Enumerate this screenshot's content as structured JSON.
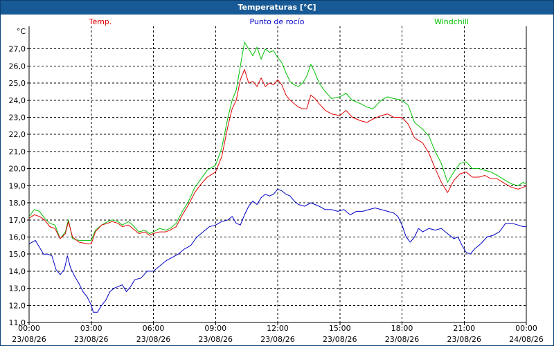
{
  "window": {
    "title": "Temperaturas [°C]"
  },
  "colors": {
    "titlebar": "#185a96",
    "temp": "#e00000",
    "dew": "#0000c8",
    "wind": "#00c000",
    "grid": "#000000"
  },
  "chart_data": {
    "type": "line",
    "title": "Temperaturas [°C]",
    "ylabel": "°C",
    "ylim": [
      11.0,
      28.0
    ],
    "grid": true,
    "y_ticks": [
      "11,0",
      "12,0",
      "13,0",
      "14,0",
      "15,0",
      "16,0",
      "17,0",
      "18,0",
      "19,0",
      "20,0",
      "21,0",
      "22,0",
      "23,0",
      "24,0",
      "25,0",
      "26,0",
      "27,0"
    ],
    "x_ticks": [
      {
        "time": "00:00",
        "date": "23/08/26"
      },
      {
        "time": "03:00",
        "date": "23/08/26"
      },
      {
        "time": "06:00",
        "date": "23/08/26"
      },
      {
        "time": "09:00",
        "date": "23/08/26"
      },
      {
        "time": "12:00",
        "date": "23/08/26"
      },
      {
        "time": "15:00",
        "date": "23/08/26"
      },
      {
        "time": "18:00",
        "date": "23/08/26"
      },
      {
        "time": "21:00",
        "date": "23/08/26"
      },
      {
        "time": "00:00",
        "date": "24/08/26"
      }
    ],
    "x_unit": "hours since 00:00 23/08/26",
    "xlim": [
      0,
      24
    ],
    "series": [
      {
        "name": "Temp.",
        "color": "#e00000",
        "points": [
          [
            0,
            17.1
          ],
          [
            0.25,
            17.3
          ],
          [
            0.5,
            17.2
          ],
          [
            0.75,
            17.0
          ],
          [
            1.0,
            16.6
          ],
          [
            1.25,
            16.5
          ],
          [
            1.5,
            15.9
          ],
          [
            1.75,
            16.2
          ],
          [
            1.9,
            16.9
          ],
          [
            2.1,
            16.0
          ],
          [
            2.4,
            15.7
          ],
          [
            2.8,
            15.6
          ],
          [
            3.0,
            15.6
          ],
          [
            3.2,
            16.3
          ],
          [
            3.5,
            16.7
          ],
          [
            3.8,
            16.8
          ],
          [
            4.0,
            16.9
          ],
          [
            4.3,
            16.8
          ],
          [
            4.5,
            16.6
          ],
          [
            4.8,
            16.7
          ],
          [
            5.0,
            16.5
          ],
          [
            5.3,
            16.2
          ],
          [
            5.6,
            16.3
          ],
          [
            5.8,
            16.1
          ],
          [
            6.0,
            16.2
          ],
          [
            6.3,
            16.3
          ],
          [
            6.6,
            16.3
          ],
          [
            6.8,
            16.4
          ],
          [
            7.1,
            16.6
          ],
          [
            7.4,
            17.3
          ],
          [
            7.7,
            17.9
          ],
          [
            8.0,
            18.6
          ],
          [
            8.3,
            19.1
          ],
          [
            8.6,
            19.5
          ],
          [
            9.0,
            19.8
          ],
          [
            9.3,
            20.7
          ],
          [
            9.6,
            22.5
          ],
          [
            9.8,
            23.5
          ],
          [
            10.0,
            24.0
          ],
          [
            10.2,
            25.2
          ],
          [
            10.4,
            25.8
          ],
          [
            10.6,
            25.0
          ],
          [
            10.8,
            25.1
          ],
          [
            11.0,
            24.8
          ],
          [
            11.2,
            25.3
          ],
          [
            11.4,
            24.8
          ],
          [
            11.6,
            25.0
          ],
          [
            11.8,
            24.9
          ],
          [
            12.0,
            25.2
          ],
          [
            12.2,
            24.9
          ],
          [
            12.4,
            24.3
          ],
          [
            12.6,
            24.0
          ],
          [
            12.8,
            23.8
          ],
          [
            13.0,
            23.6
          ],
          [
            13.2,
            23.5
          ],
          [
            13.4,
            23.5
          ],
          [
            13.6,
            24.3
          ],
          [
            13.8,
            24.1
          ],
          [
            14.0,
            23.8
          ],
          [
            14.3,
            23.4
          ],
          [
            14.6,
            23.2
          ],
          [
            15.0,
            23.1
          ],
          [
            15.3,
            23.4
          ],
          [
            15.6,
            23.0
          ],
          [
            16.0,
            22.8
          ],
          [
            16.3,
            22.7
          ],
          [
            16.6,
            22.9
          ],
          [
            17.0,
            23.1
          ],
          [
            17.3,
            23.2
          ],
          [
            17.6,
            23.0
          ],
          [
            18.0,
            23.0
          ],
          [
            18.3,
            22.6
          ],
          [
            18.6,
            21.8
          ],
          [
            19.0,
            21.5
          ],
          [
            19.3,
            20.9
          ],
          [
            19.6,
            20.0
          ],
          [
            19.9,
            19.2
          ],
          [
            20.2,
            18.6
          ],
          [
            20.5,
            19.3
          ],
          [
            20.8,
            19.7
          ],
          [
            21.1,
            19.8
          ],
          [
            21.4,
            19.5
          ],
          [
            21.7,
            19.5
          ],
          [
            22.0,
            19.6
          ],
          [
            22.3,
            19.4
          ],
          [
            22.6,
            19.4
          ],
          [
            23.0,
            19.1
          ],
          [
            23.3,
            18.9
          ],
          [
            23.6,
            18.8
          ],
          [
            23.85,
            18.9
          ],
          [
            24.0,
            19.0
          ]
        ]
      },
      {
        "name": "Punto de rocío",
        "color": "#0000c8",
        "points": [
          [
            0,
            15.6
          ],
          [
            0.3,
            15.8
          ],
          [
            0.5,
            15.4
          ],
          [
            0.7,
            15.0
          ],
          [
            0.9,
            15.0
          ],
          [
            1.1,
            14.9
          ],
          [
            1.3,
            14.1
          ],
          [
            1.5,
            13.8
          ],
          [
            1.7,
            14.1
          ],
          [
            1.85,
            14.9
          ],
          [
            2.0,
            14.2
          ],
          [
            2.2,
            13.7
          ],
          [
            2.4,
            13.3
          ],
          [
            2.6,
            12.8
          ],
          [
            2.8,
            12.5
          ],
          [
            3.0,
            12.0
          ],
          [
            3.1,
            11.6
          ],
          [
            3.3,
            11.6
          ],
          [
            3.5,
            12.0
          ],
          [
            3.7,
            12.3
          ],
          [
            3.9,
            12.8
          ],
          [
            4.1,
            13.0
          ],
          [
            4.3,
            13.1
          ],
          [
            4.5,
            13.2
          ],
          [
            4.7,
            12.8
          ],
          [
            4.9,
            13.1
          ],
          [
            5.1,
            13.5
          ],
          [
            5.4,
            13.6
          ],
          [
            5.7,
            14.0
          ],
          [
            6.0,
            14.0
          ],
          [
            6.3,
            14.3
          ],
          [
            6.6,
            14.6
          ],
          [
            6.9,
            14.8
          ],
          [
            7.2,
            15.0
          ],
          [
            7.5,
            15.3
          ],
          [
            7.8,
            15.5
          ],
          [
            8.1,
            16.0
          ],
          [
            8.4,
            16.3
          ],
          [
            8.7,
            16.6
          ],
          [
            9.0,
            16.7
          ],
          [
            9.3,
            16.9
          ],
          [
            9.6,
            17.0
          ],
          [
            9.8,
            17.2
          ],
          [
            10.0,
            16.8
          ],
          [
            10.2,
            16.7
          ],
          [
            10.4,
            17.3
          ],
          [
            10.6,
            17.8
          ],
          [
            10.8,
            18.1
          ],
          [
            11.0,
            17.9
          ],
          [
            11.2,
            18.3
          ],
          [
            11.4,
            18.5
          ],
          [
            11.6,
            18.4
          ],
          [
            11.8,
            18.5
          ],
          [
            12.0,
            18.8
          ],
          [
            12.2,
            18.7
          ],
          [
            12.4,
            18.5
          ],
          [
            12.6,
            18.4
          ],
          [
            12.8,
            18.1
          ],
          [
            13.0,
            17.9
          ],
          [
            13.3,
            17.8
          ],
          [
            13.6,
            18.0
          ],
          [
            13.8,
            17.9
          ],
          [
            14.0,
            17.8
          ],
          [
            14.3,
            17.6
          ],
          [
            14.6,
            17.6
          ],
          [
            14.9,
            17.5
          ],
          [
            15.2,
            17.6
          ],
          [
            15.5,
            17.3
          ],
          [
            15.8,
            17.5
          ],
          [
            16.1,
            17.5
          ],
          [
            16.4,
            17.6
          ],
          [
            16.7,
            17.7
          ],
          [
            17.0,
            17.6
          ],
          [
            17.3,
            17.5
          ],
          [
            17.6,
            17.4
          ],
          [
            17.8,
            17.2
          ],
          [
            18.0,
            16.7
          ],
          [
            18.2,
            16.0
          ],
          [
            18.4,
            15.7
          ],
          [
            18.6,
            16.0
          ],
          [
            18.8,
            16.5
          ],
          [
            19.0,
            16.3
          ],
          [
            19.3,
            16.5
          ],
          [
            19.6,
            16.4
          ],
          [
            19.9,
            16.5
          ],
          [
            20.1,
            16.3
          ],
          [
            20.3,
            16.1
          ],
          [
            20.5,
            15.9
          ],
          [
            20.7,
            16.0
          ],
          [
            20.9,
            15.5
          ],
          [
            21.1,
            15.1
          ],
          [
            21.3,
            15.0
          ],
          [
            21.5,
            15.3
          ],
          [
            21.8,
            15.6
          ],
          [
            22.1,
            16.0
          ],
          [
            22.4,
            16.1
          ],
          [
            22.7,
            16.3
          ],
          [
            23.0,
            16.8
          ],
          [
            23.3,
            16.8
          ],
          [
            23.6,
            16.7
          ],
          [
            23.85,
            16.6
          ],
          [
            24.0,
            16.6
          ]
        ]
      },
      {
        "name": "Windchill",
        "color": "#00c000",
        "points": [
          [
            0,
            17.2
          ],
          [
            0.25,
            17.6
          ],
          [
            0.5,
            17.5
          ],
          [
            0.75,
            17.1
          ],
          [
            1.0,
            16.8
          ],
          [
            1.25,
            16.7
          ],
          [
            1.5,
            15.9
          ],
          [
            1.75,
            16.3
          ],
          [
            1.9,
            17.0
          ],
          [
            2.1,
            15.9
          ],
          [
            2.4,
            15.8
          ],
          [
            2.8,
            15.8
          ],
          [
            3.0,
            15.8
          ],
          [
            3.2,
            16.4
          ],
          [
            3.5,
            16.7
          ],
          [
            3.8,
            16.9
          ],
          [
            4.0,
            17.0
          ],
          [
            4.3,
            16.9
          ],
          [
            4.5,
            16.7
          ],
          [
            4.8,
            16.9
          ],
          [
            5.0,
            16.7
          ],
          [
            5.3,
            16.3
          ],
          [
            5.6,
            16.4
          ],
          [
            5.8,
            16.2
          ],
          [
            6.0,
            16.3
          ],
          [
            6.3,
            16.5
          ],
          [
            6.6,
            16.4
          ],
          [
            6.8,
            16.5
          ],
          [
            7.1,
            16.8
          ],
          [
            7.4,
            17.5
          ],
          [
            7.7,
            18.1
          ],
          [
            8.0,
            18.9
          ],
          [
            8.3,
            19.4
          ],
          [
            8.6,
            19.9
          ],
          [
            9.0,
            20.2
          ],
          [
            9.3,
            21.2
          ],
          [
            9.6,
            23.0
          ],
          [
            9.8,
            24.0
          ],
          [
            10.0,
            24.6
          ],
          [
            10.2,
            26.0
          ],
          [
            10.4,
            27.4
          ],
          [
            10.6,
            27.0
          ],
          [
            10.8,
            26.6
          ],
          [
            11.0,
            27.1
          ],
          [
            11.2,
            26.4
          ],
          [
            11.4,
            27.0
          ],
          [
            11.6,
            26.8
          ],
          [
            11.8,
            26.9
          ],
          [
            12.0,
            26.5
          ],
          [
            12.2,
            26.2
          ],
          [
            12.4,
            25.6
          ],
          [
            12.6,
            25.1
          ],
          [
            12.8,
            24.9
          ],
          [
            13.0,
            24.8
          ],
          [
            13.2,
            25.0
          ],
          [
            13.4,
            25.4
          ],
          [
            13.6,
            26.1
          ],
          [
            13.8,
            25.6
          ],
          [
            14.0,
            25.0
          ],
          [
            14.3,
            24.5
          ],
          [
            14.6,
            24.1
          ],
          [
            15.0,
            24.2
          ],
          [
            15.3,
            24.4
          ],
          [
            15.6,
            24.0
          ],
          [
            16.0,
            23.8
          ],
          [
            16.3,
            23.6
          ],
          [
            16.6,
            23.5
          ],
          [
            17.0,
            24.0
          ],
          [
            17.3,
            24.2
          ],
          [
            17.6,
            24.1
          ],
          [
            18.0,
            24.0
          ],
          [
            18.3,
            23.7
          ],
          [
            18.6,
            22.7
          ],
          [
            19.0,
            22.3
          ],
          [
            19.3,
            21.9
          ],
          [
            19.6,
            21.0
          ],
          [
            19.9,
            20.3
          ],
          [
            20.2,
            19.2
          ],
          [
            20.5,
            19.8
          ],
          [
            20.8,
            20.3
          ],
          [
            21.1,
            20.4
          ],
          [
            21.4,
            20.0
          ],
          [
            21.7,
            20.0
          ],
          [
            22.0,
            19.9
          ],
          [
            22.3,
            19.8
          ],
          [
            22.6,
            19.6
          ],
          [
            23.0,
            19.3
          ],
          [
            23.3,
            19.1
          ],
          [
            23.6,
            19.0
          ],
          [
            23.85,
            19.2
          ],
          [
            24.0,
            19.1
          ]
        ]
      }
    ]
  }
}
